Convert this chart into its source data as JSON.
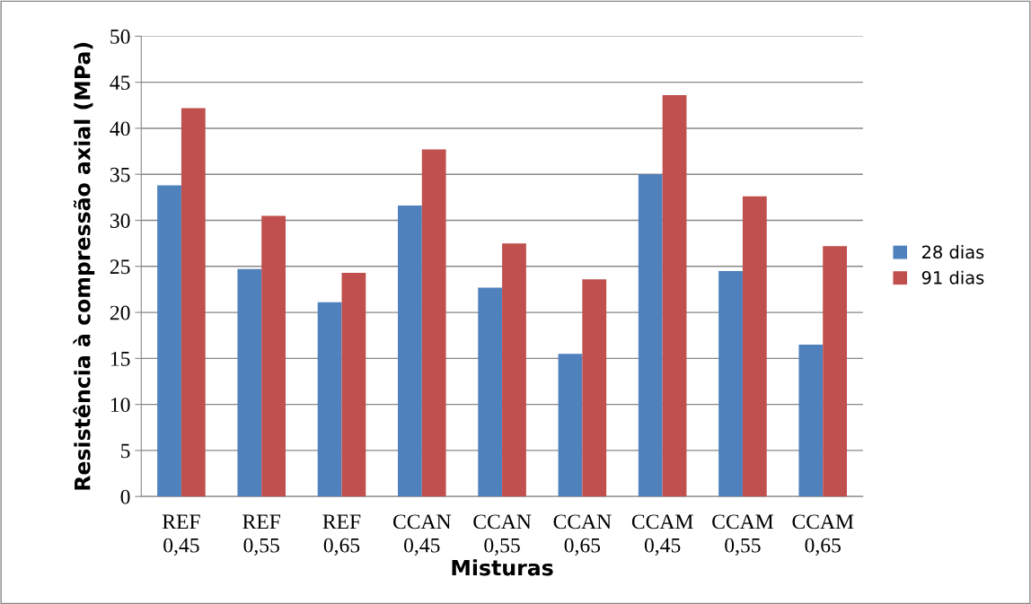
{
  "chart_data": {
    "type": "bar",
    "xlabel": "Misturas",
    "ylabel": "Resistência à compressão axial (MPa)",
    "categories": [
      "REF\n0,45",
      "REF\n0,55",
      "REF\n0,65",
      "CCAN\n0,45",
      "CCAN\n0,55",
      "CCAN\n0,65",
      "CCAM\n0,45",
      "CCAM\n0,55",
      "CCAM\n0,65"
    ],
    "series": [
      {
        "name": "28 dias",
        "color": "#4f81bd",
        "values": [
          33.8,
          24.7,
          21.1,
          31.6,
          22.7,
          15.5,
          35.0,
          24.5,
          16.5
        ]
      },
      {
        "name": "91 dias",
        "color": "#c0504d",
        "values": [
          42.2,
          30.5,
          24.3,
          37.7,
          27.5,
          23.6,
          43.6,
          32.6,
          27.2
        ]
      }
    ],
    "ylim": [
      0,
      50
    ],
    "yticks": [
      0,
      5,
      10,
      15,
      20,
      25,
      30,
      35,
      40,
      45,
      50
    ],
    "grid": "y",
    "legend": "right"
  }
}
